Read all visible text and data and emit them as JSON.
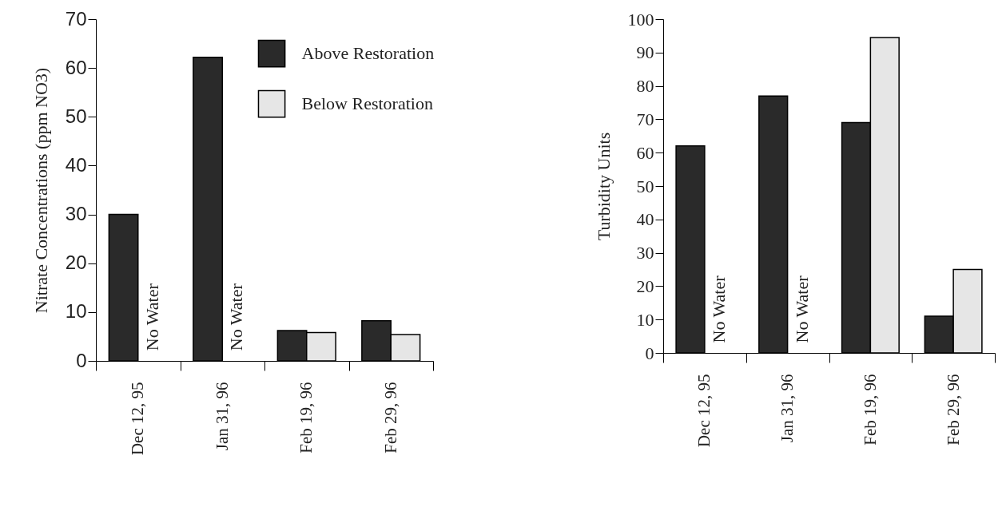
{
  "chart_data": [
    {
      "type": "bar",
      "ylabel": "Nitrate Concentrations (ppm NO3)",
      "categories": [
        "Dec 12, 95",
        "Jan 31, 96",
        "Feb 19, 96",
        "Feb 29, 96"
      ],
      "series": [
        {
          "name": "Above Restoration",
          "color": "#2a2a2a",
          "values": [
            30,
            62.2,
            6.2,
            8.2
          ]
        },
        {
          "name": "Below Restoration",
          "color": "#e6e6e6",
          "values": [
            null,
            null,
            5.8,
            5.4
          ]
        }
      ],
      "ylim": [
        0,
        70
      ],
      "yticks": [
        0,
        10,
        20,
        30,
        40,
        50,
        60,
        70
      ],
      "grid": false,
      "legend": "top right",
      "annotations": [
        "No Water",
        "No Water"
      ]
    },
    {
      "type": "bar",
      "ylabel": "Turbidity Units",
      "categories": [
        "Dec 12, 95",
        "Jan 31, 96",
        "Feb 19, 96",
        "Feb 29, 96"
      ],
      "series": [
        {
          "color": "#2a2a2a",
          "values": [
            62,
            77,
            69,
            11
          ]
        },
        {
          "color": "#e6e6e6",
          "values": [
            null,
            null,
            94.5,
            25
          ]
        }
      ],
      "ylim": [
        0,
        100
      ],
      "yticks": [
        0,
        10,
        20,
        30,
        40,
        50,
        60,
        70,
        80,
        90,
        100
      ],
      "grid": false,
      "legend": false,
      "annotations": [
        "No Water",
        "No Water"
      ]
    }
  ]
}
